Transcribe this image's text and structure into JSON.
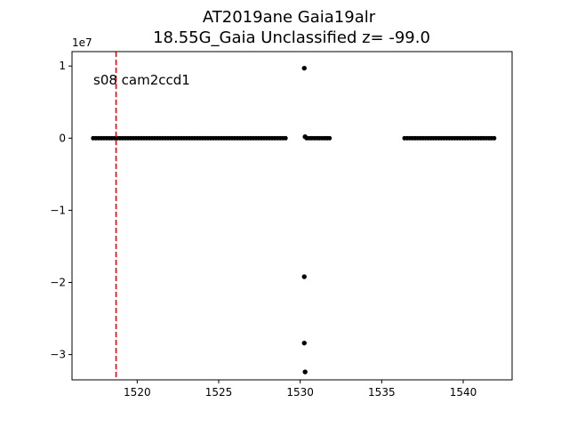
{
  "chart_data": {
    "type": "scatter",
    "title": "AT2019ane  Gaia19alr",
    "subtitle": "18.55G_Gaia Unclassified z= -99.0",
    "xlabel": "",
    "ylabel": "",
    "y_offset_label": "1e7",
    "y_scale": 10000000,
    "xlim": [
      1516.0,
      1543.0
    ],
    "ylim": [
      -33500000,
      12000000
    ],
    "xticks": [
      1520,
      1525,
      1530,
      1535,
      1540
    ],
    "xtick_labels": [
      "1520",
      "1525",
      "1530",
      "1535",
      "1540"
    ],
    "yticks": [
      10000000,
      0,
      -10000000,
      -20000000,
      -30000000
    ],
    "ytick_labels": [
      "1",
      "0",
      "−1",
      "−2",
      "−3"
    ],
    "grid": false,
    "annotation": "s08 cam2ccd1",
    "vline": {
      "x": 1518.7,
      "color": "#e8000b",
      "style": "dashed"
    },
    "marker_color": "#000000",
    "segments": [
      {
        "x_start": 1517.3,
        "x_end": 1529.1,
        "y": 0
      },
      {
        "x_start": 1530.4,
        "x_end": 1531.8,
        "y": 0
      },
      {
        "x_start": 1536.4,
        "x_end": 1541.9,
        "y": 0
      }
    ],
    "outliers": [
      {
        "x": 1530.25,
        "y": 9700000
      },
      {
        "x": 1530.3,
        "y": 200000
      },
      {
        "x": 1530.25,
        "y": -19200000
      },
      {
        "x": 1530.25,
        "y": -28400000
      },
      {
        "x": 1530.3,
        "y": -32400000
      }
    ]
  }
}
